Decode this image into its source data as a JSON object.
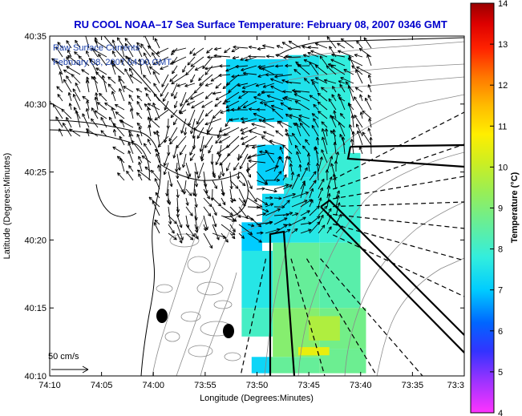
{
  "title": "RU COOL  NOAA–17  Sea Surface Temperature:  February 08, 2007 0346 GMT",
  "legend": {
    "line1": "Raw Surface Currents",
    "line2": "February 08, 2007 04:00 GMT",
    "scale_label": "50 cm/s"
  },
  "colors": {
    "title": "#0000cc",
    "legend_text": "#1a3fa8",
    "coast": "#000000",
    "bathymetry": "#8a8a8a",
    "vectors": "#000000",
    "land_fill": "#ffffff"
  },
  "chart_data": {
    "type": "heatmap",
    "title": "RU COOL  NOAA–17  Sea Surface Temperature:  February 08, 2007 0346 GMT",
    "xlabel": "Longitude (Degrees:Minutes)",
    "ylabel": "Latitude (Degrees:Minutes)",
    "x_ticks": [
      "74:10",
      "74:05",
      "74:00",
      "73:55",
      "73:50",
      "73:45",
      "73:40",
      "73:35",
      "73:3"
    ],
    "y_ticks": [
      "40:10",
      "40:15",
      "40:20",
      "40:25",
      "40:30",
      "40:35"
    ],
    "xlim": [
      -74.1667,
      -73.5
    ],
    "ylim": [
      40.1667,
      40.5833
    ],
    "colorbar": {
      "label": "Temperature (°C)",
      "min": 4,
      "max": 14,
      "ticks": [
        "4",
        "5",
        "6",
        "7",
        "8",
        "9",
        "10",
        "11",
        "12",
        "13",
        "14"
      ]
    },
    "sst_regions": [
      {
        "lon": [
          -73.883,
          -73.783
        ],
        "lat": [
          40.478,
          40.555
        ],
        "temp": 7.2
      },
      {
        "lon": [
          -73.783,
          -73.733
        ],
        "lat": [
          40.41,
          40.56
        ],
        "temp": 7.5
      },
      {
        "lon": [
          -73.733,
          -73.683
        ],
        "lat": [
          40.44,
          40.56
        ],
        "temp": 7.8
      },
      {
        "lon": [
          -73.733,
          -73.667
        ],
        "lat": [
          40.33,
          40.44
        ],
        "temp": 7.9
      },
      {
        "lon": [
          -73.79,
          -73.733
        ],
        "lat": [
          40.33,
          40.41
        ],
        "temp": 7.6
      },
      {
        "lon": [
          -73.833,
          -73.79
        ],
        "lat": [
          40.4,
          40.45
        ],
        "temp": 7.1
      },
      {
        "lon": [
          -73.825,
          -73.78
        ],
        "lat": [
          40.33,
          40.39
        ],
        "temp": 7.3
      },
      {
        "lon": [
          -73.858,
          -73.825
        ],
        "lat": [
          40.32,
          40.355
        ],
        "temp": 7.0
      },
      {
        "lon": [
          -73.858,
          -73.808
        ],
        "lat": [
          40.25,
          40.32
        ],
        "temp": 7.6
      },
      {
        "lon": [
          -73.808,
          -73.733
        ],
        "lat": [
          40.25,
          40.33
        ],
        "temp": 8.6
      },
      {
        "lon": [
          -73.733,
          -73.667
        ],
        "lat": [
          40.25,
          40.33
        ],
        "temp": 8.4
      },
      {
        "lon": [
          -73.858,
          -73.808
        ],
        "lat": [
          40.215,
          40.25
        ],
        "temp": 8.1
      },
      {
        "lon": [
          -73.808,
          -73.733
        ],
        "lat": [
          40.19,
          40.25
        ],
        "temp": 9.1
      },
      {
        "lon": [
          -73.733,
          -73.658
        ],
        "lat": [
          40.2,
          40.25
        ],
        "temp": 8.8
      },
      {
        "lon": [
          -73.75,
          -73.7
        ],
        "lat": [
          40.21,
          40.24
        ],
        "temp": 9.7
      },
      {
        "lon": [
          -73.733,
          -73.658
        ],
        "lat": [
          40.17,
          40.2
        ],
        "temp": 8.7
      },
      {
        "lon": [
          -73.842,
          -73.812
        ],
        "lat": [
          40.17,
          40.19
        ],
        "temp": 7.2
      },
      {
        "lon": [
          -73.812,
          -73.733
        ],
        "lat": [
          40.17,
          40.19
        ],
        "temp": 8.6
      },
      {
        "lon": [
          -73.767,
          -73.717
        ],
        "lat": [
          40.192,
          40.202
        ],
        "temp": 10.5
      }
    ]
  }
}
